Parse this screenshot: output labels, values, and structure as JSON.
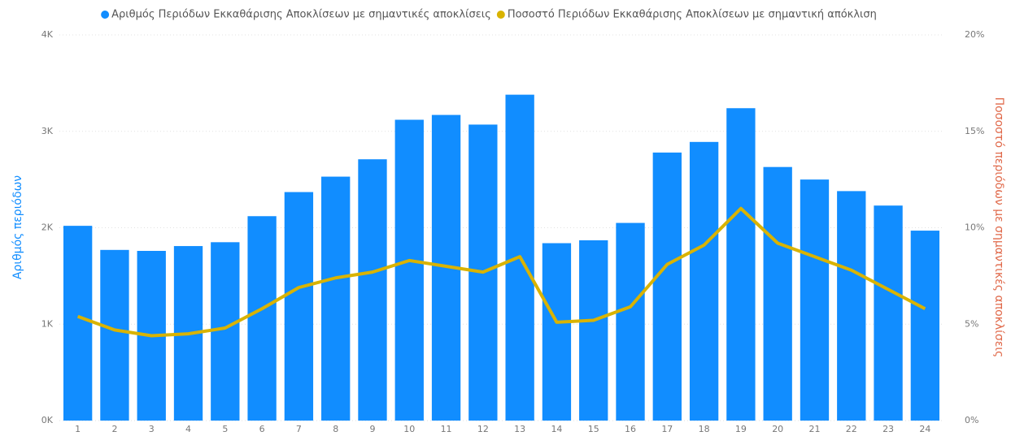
{
  "chart_data": {
    "type": "bar",
    "categories": [
      "1",
      "2",
      "3",
      "4",
      "5",
      "6",
      "7",
      "8",
      "9",
      "10",
      "11",
      "12",
      "13",
      "14",
      "15",
      "16",
      "17",
      "18",
      "19",
      "20",
      "21",
      "22",
      "23",
      "24"
    ],
    "series": [
      {
        "name": "Αριθμός Περιόδων Εκκαθάρισης Αποκλίσεων με σημαντικές αποκλίσεις",
        "color": "#118dff",
        "type": "bar",
        "values": [
          2020,
          1770,
          1760,
          1810,
          1850,
          2120,
          2370,
          2530,
          2710,
          3120,
          3170,
          3070,
          3380,
          1840,
          1870,
          2050,
          2780,
          2890,
          3240,
          2630,
          2500,
          2380,
          2230,
          1970
        ]
      },
      {
        "name": "Ποσοστό Περιόδων Εκκαθάρισης Αποκλίσεων με σημαντική απόκλιση",
        "color": "#d9b300",
        "type": "line",
        "axis": "y2",
        "values": [
          5.4,
          4.7,
          4.4,
          4.5,
          4.8,
          5.8,
          6.9,
          7.4,
          7.7,
          8.3,
          8.0,
          7.7,
          8.5,
          5.1,
          5.2,
          5.9,
          8.1,
          9.1,
          11.0,
          9.2,
          8.5,
          7.8,
          6.8,
          5.8
        ]
      }
    ],
    "y_label": "Αριθμός περιόδων",
    "y2_label": "Ποσοστό περιόδων με σημαντικές αποκλίσεις",
    "ylim": [
      0,
      4000
    ],
    "yticks": [
      {
        "value": 0,
        "label": "0K"
      },
      {
        "value": 1000,
        "label": "1K"
      },
      {
        "value": 2000,
        "label": "2K"
      },
      {
        "value": 3000,
        "label": "3K"
      },
      {
        "value": 4000,
        "label": "4K"
      }
    ],
    "y2lim": [
      0,
      20
    ],
    "y2ticks": [
      {
        "value": 0,
        "label": "0%"
      },
      {
        "value": 5,
        "label": "5%"
      },
      {
        "value": 10,
        "label": "10%"
      },
      {
        "value": 15,
        "label": "15%"
      },
      {
        "value": 20,
        "label": "20%"
      }
    ],
    "grid": true,
    "legend": "top"
  }
}
